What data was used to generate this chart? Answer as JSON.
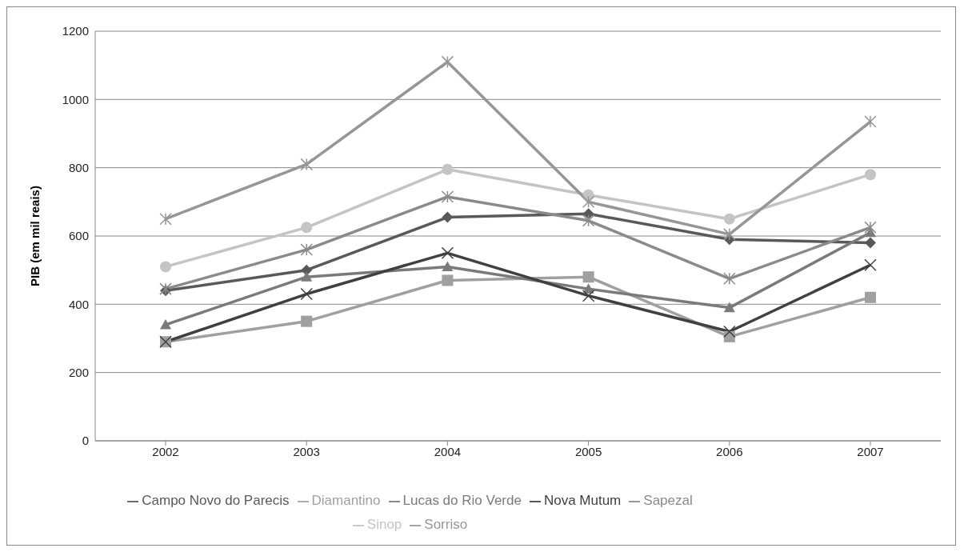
{
  "chart_data": {
    "type": "line",
    "ylabel": "PIB (em mil reais)",
    "categories": [
      "2002",
      "2003",
      "2004",
      "2005",
      "2006",
      "2007"
    ],
    "ylim": [
      0,
      1200
    ],
    "yticks": [
      0,
      200,
      400,
      600,
      800,
      1000,
      1200
    ],
    "grid": "y",
    "legend": "bottom",
    "line_style": "solid",
    "series": [
      {
        "name": "Campo Novo do Parecis",
        "color": "#595959",
        "marker": "diamond",
        "values": [
          440,
          500,
          655,
          665,
          590,
          580
        ]
      },
      {
        "name": "Diamantino",
        "color": "#a0a0a0",
        "marker": "square",
        "values": [
          290,
          350,
          470,
          480,
          305,
          420
        ]
      },
      {
        "name": "Lucas do Rio Verde",
        "color": "#7a7a7a",
        "marker": "triangle",
        "values": [
          340,
          480,
          510,
          445,
          390,
          610
        ]
      },
      {
        "name": "Nova Mutum",
        "color": "#404040",
        "marker": "x",
        "values": [
          290,
          430,
          550,
          425,
          320,
          515
        ]
      },
      {
        "name": "Sapezal",
        "color": "#8a8a8a",
        "marker": "cross",
        "values": [
          445,
          560,
          715,
          645,
          475,
          625
        ]
      },
      {
        "name": "Sinop",
        "color": "#c4c4c4",
        "marker": "circle",
        "values": [
          510,
          625,
          795,
          720,
          650,
          780
        ]
      },
      {
        "name": "Sorriso",
        "color": "#969696",
        "marker": "cross",
        "values": [
          650,
          810,
          1110,
          700,
          605,
          935
        ]
      }
    ]
  }
}
